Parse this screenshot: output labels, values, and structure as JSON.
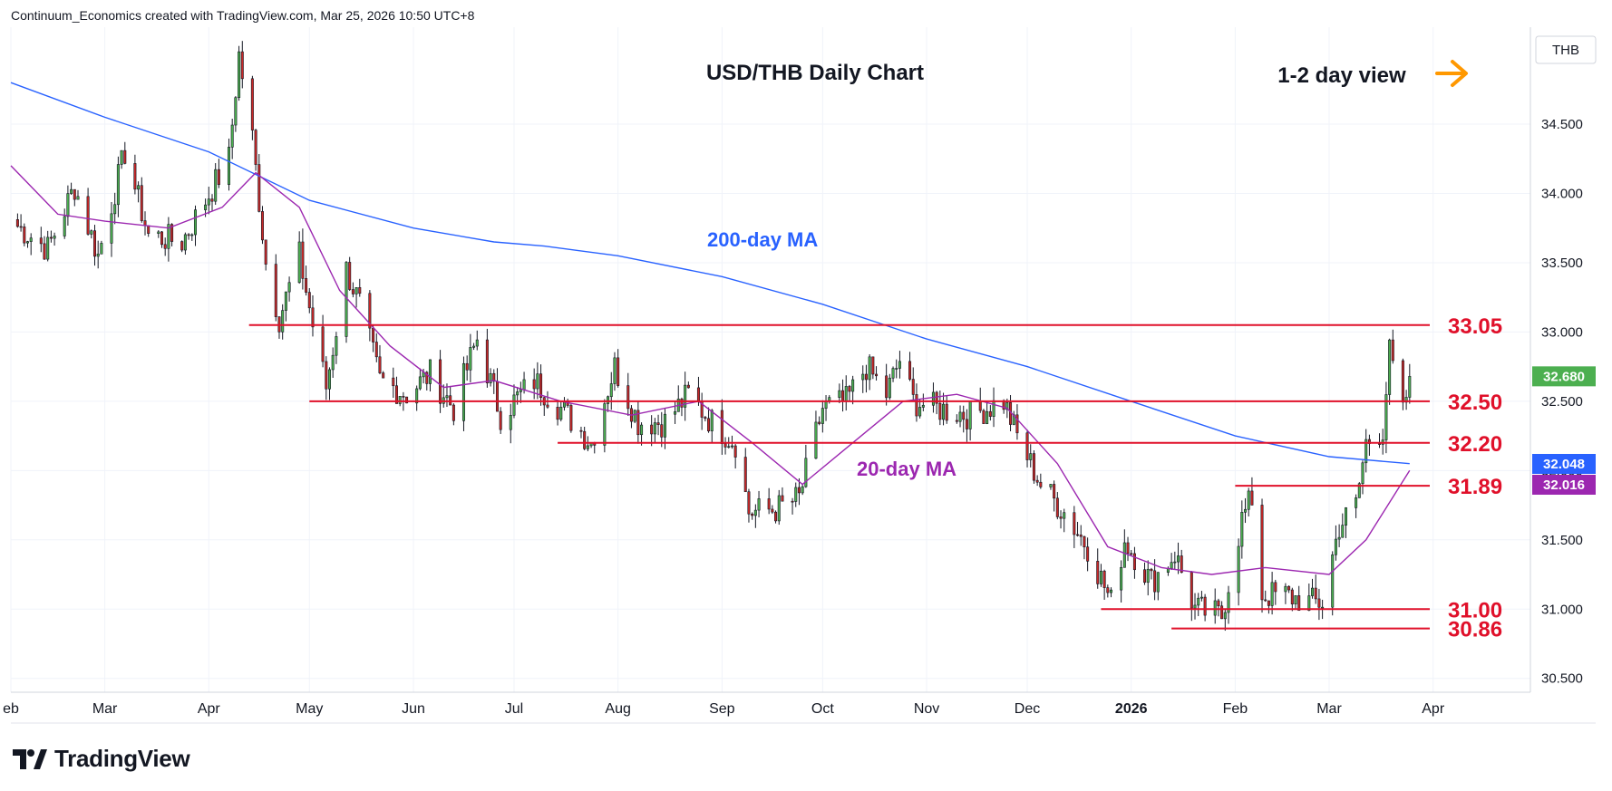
{
  "header": {
    "text": "Continuum_Economics created with TradingView.com, Mar 25, 2026 10:50 UTC+8"
  },
  "brand": {
    "name": "TradingView",
    "logo_icon": "tradingview-logo-icon"
  },
  "colors": {
    "up": "#4caf50",
    "down": "#c62828",
    "ma200": "#2962ff",
    "ma20": "#9c27b0",
    "levels": "#e0102a",
    "text": "#131722",
    "grid": "#f0f3fa"
  },
  "chart_data": {
    "type": "candlestick",
    "title": "USD/THB Daily Chart",
    "currency_label": "THB",
    "view_label": "1-2 day view",
    "view_icon": "arrow-right-icon",
    "view_color": "#ff9800",
    "ylim": [
      30.4,
      35.2
    ],
    "y_ticks": [
      "30.500",
      "31.000",
      "31.500",
      "32.000",
      "32.500",
      "33.000",
      "33.500",
      "34.000",
      "34.500"
    ],
    "grid": true,
    "x_start": "2025-02-01",
    "x_end": "2026-04-30",
    "months": [
      {
        "label": "eb",
        "date": "2025-02-01"
      },
      {
        "label": "Mar",
        "date": "2025-03-01"
      },
      {
        "label": "Apr",
        "date": "2025-04-01"
      },
      {
        "label": "May",
        "date": "2025-05-01"
      },
      {
        "label": "Jun",
        "date": "2025-06-01"
      },
      {
        "label": "Jul",
        "date": "2025-07-01"
      },
      {
        "label": "Aug",
        "date": "2025-08-01"
      },
      {
        "label": "Sep",
        "date": "2025-09-01"
      },
      {
        "label": "Oct",
        "date": "2025-10-01"
      },
      {
        "label": "Nov",
        "date": "2025-11-01"
      },
      {
        "label": "Dec",
        "date": "2025-12-01"
      },
      {
        "label": "2026",
        "date": "2026-01-01",
        "bold": true
      },
      {
        "label": "Feb",
        "date": "2026-02-01"
      },
      {
        "label": "Mar",
        "date": "2026-03-01"
      },
      {
        "label": "Apr",
        "date": "2026-04-01"
      }
    ],
    "path": [
      [
        "2025-02-01",
        33.8
      ],
      [
        "2025-02-12",
        33.6
      ],
      [
        "2025-02-20",
        34.05
      ],
      [
        "2025-02-27",
        33.55
      ],
      [
        "2025-03-07",
        34.3
      ],
      [
        "2025-03-14",
        33.7
      ],
      [
        "2025-03-24",
        33.65
      ],
      [
        "2025-03-31",
        33.95
      ],
      [
        "2025-04-07",
        34.25
      ],
      [
        "2025-04-10",
        35.0
      ],
      [
        "2025-04-14",
        34.4
      ],
      [
        "2025-04-18",
        33.5
      ],
      [
        "2025-04-22",
        33.1
      ],
      [
        "2025-04-28",
        33.55
      ],
      [
        "2025-05-02",
        33.05
      ],
      [
        "2025-05-06",
        32.6
      ],
      [
        "2025-05-12",
        33.45
      ],
      [
        "2025-05-16",
        33.2
      ],
      [
        "2025-05-22",
        32.65
      ],
      [
        "2025-05-30",
        32.55
      ],
      [
        "2025-06-06",
        32.7
      ],
      [
        "2025-06-13",
        32.45
      ],
      [
        "2025-06-20",
        32.95
      ],
      [
        "2025-06-27",
        32.4
      ],
      [
        "2025-07-07",
        32.65
      ],
      [
        "2025-07-15",
        32.45
      ],
      [
        "2025-07-24",
        32.2
      ],
      [
        "2025-07-31",
        32.75
      ],
      [
        "2025-08-07",
        32.35
      ],
      [
        "2025-08-15",
        32.35
      ],
      [
        "2025-08-22",
        32.55
      ],
      [
        "2025-08-29",
        32.35
      ],
      [
        "2025-09-05",
        32.2
      ],
      [
        "2025-09-09",
        31.7
      ],
      [
        "2025-09-17",
        31.72
      ],
      [
        "2025-09-24",
        31.8
      ],
      [
        "2025-10-01",
        32.45
      ],
      [
        "2025-10-08",
        32.5
      ],
      [
        "2025-10-14",
        32.75
      ],
      [
        "2025-10-20",
        32.55
      ],
      [
        "2025-10-24",
        32.8
      ],
      [
        "2025-10-28",
        32.5
      ],
      [
        "2025-11-04",
        32.45
      ],
      [
        "2025-11-14",
        32.4
      ],
      [
        "2025-11-24",
        32.5
      ],
      [
        "2025-11-28",
        32.25
      ],
      [
        "2025-12-05",
        31.9
      ],
      [
        "2025-12-12",
        31.7
      ],
      [
        "2025-12-19",
        31.45
      ],
      [
        "2025-12-26",
        31.05
      ],
      [
        "2025-12-30",
        31.5
      ],
      [
        "2026-01-07",
        31.2
      ],
      [
        "2026-01-14",
        31.4
      ],
      [
        "2026-01-20",
        31.0
      ],
      [
        "2026-01-28",
        30.95
      ],
      [
        "2026-02-03",
        31.65
      ],
      [
        "2026-02-06",
        31.8
      ],
      [
        "2026-02-09",
        31.1
      ],
      [
        "2026-02-16",
        31.1
      ],
      [
        "2026-02-23",
        31.05
      ],
      [
        "2026-02-27",
        31.05
      ],
      [
        "2026-03-04",
        31.6
      ],
      [
        "2026-03-09",
        31.75
      ],
      [
        "2026-03-12",
        32.2
      ],
      [
        "2026-03-17",
        32.3
      ],
      [
        "2026-03-19",
        32.85
      ],
      [
        "2026-03-23",
        32.4
      ],
      [
        "2026-03-25",
        32.68
      ]
    ],
    "ma200": {
      "label": "200-day MA",
      "points": [
        [
          "2025-02-01",
          34.8
        ],
        [
          "2025-03-01",
          34.55
        ],
        [
          "2025-04-01",
          34.3
        ],
        [
          "2025-05-01",
          33.95
        ],
        [
          "2025-06-01",
          33.75
        ],
        [
          "2025-06-25",
          33.65
        ],
        [
          "2025-07-10",
          33.62
        ],
        [
          "2025-08-01",
          33.55
        ],
        [
          "2025-09-01",
          33.4
        ],
        [
          "2025-10-01",
          33.2
        ],
        [
          "2025-11-01",
          32.95
        ],
        [
          "2025-12-01",
          32.75
        ],
        [
          "2026-01-01",
          32.5
        ],
        [
          "2026-02-01",
          32.25
        ],
        [
          "2026-03-01",
          32.1
        ],
        [
          "2026-03-25",
          32.05
        ]
      ]
    },
    "ma20": {
      "label": "20-day MA",
      "points": [
        [
          "2025-02-01",
          34.2
        ],
        [
          "2025-02-15",
          33.85
        ],
        [
          "2025-03-01",
          33.8
        ],
        [
          "2025-03-20",
          33.75
        ],
        [
          "2025-04-05",
          33.9
        ],
        [
          "2025-04-15",
          34.15
        ],
        [
          "2025-04-28",
          33.9
        ],
        [
          "2025-05-10",
          33.3
        ],
        [
          "2025-05-25",
          32.9
        ],
        [
          "2025-06-10",
          32.6
        ],
        [
          "2025-06-25",
          32.65
        ],
        [
          "2025-07-15",
          32.5
        ],
        [
          "2025-08-05",
          32.4
        ],
        [
          "2025-08-25",
          32.5
        ],
        [
          "2025-09-10",
          32.2
        ],
        [
          "2025-09-25",
          31.9
        ],
        [
          "2025-10-10",
          32.2
        ],
        [
          "2025-10-25",
          32.5
        ],
        [
          "2025-11-10",
          32.55
        ],
        [
          "2025-11-25",
          32.45
        ],
        [
          "2025-12-10",
          32.05
        ],
        [
          "2025-12-25",
          31.45
        ],
        [
          "2026-01-10",
          31.3
        ],
        [
          "2026-01-25",
          31.25
        ],
        [
          "2026-02-10",
          31.3
        ],
        [
          "2026-03-01",
          31.25
        ],
        [
          "2026-03-12",
          31.5
        ],
        [
          "2026-03-25",
          32.0
        ]
      ]
    },
    "levels": [
      {
        "value": 33.05,
        "label": "33.05",
        "from": "2025-04-13"
      },
      {
        "value": 32.5,
        "label": "32.50",
        "from": "2025-05-01"
      },
      {
        "value": 32.2,
        "label": "32.20",
        "from": "2025-07-14"
      },
      {
        "value": 31.89,
        "label": "31.89",
        "from": "2026-02-01"
      },
      {
        "value": 31.0,
        "label": "31.00",
        "from": "2025-12-23"
      },
      {
        "value": 30.86,
        "label": "30.86",
        "from": "2026-01-13"
      }
    ],
    "price_tags": [
      {
        "label": "32.680",
        "value": 32.68,
        "color": "#4caf50"
      },
      {
        "label": "32.048",
        "value": 32.048,
        "color": "#2962ff"
      },
      {
        "label": "32.016",
        "value": 32.016,
        "color": "#9c27b0"
      }
    ]
  }
}
